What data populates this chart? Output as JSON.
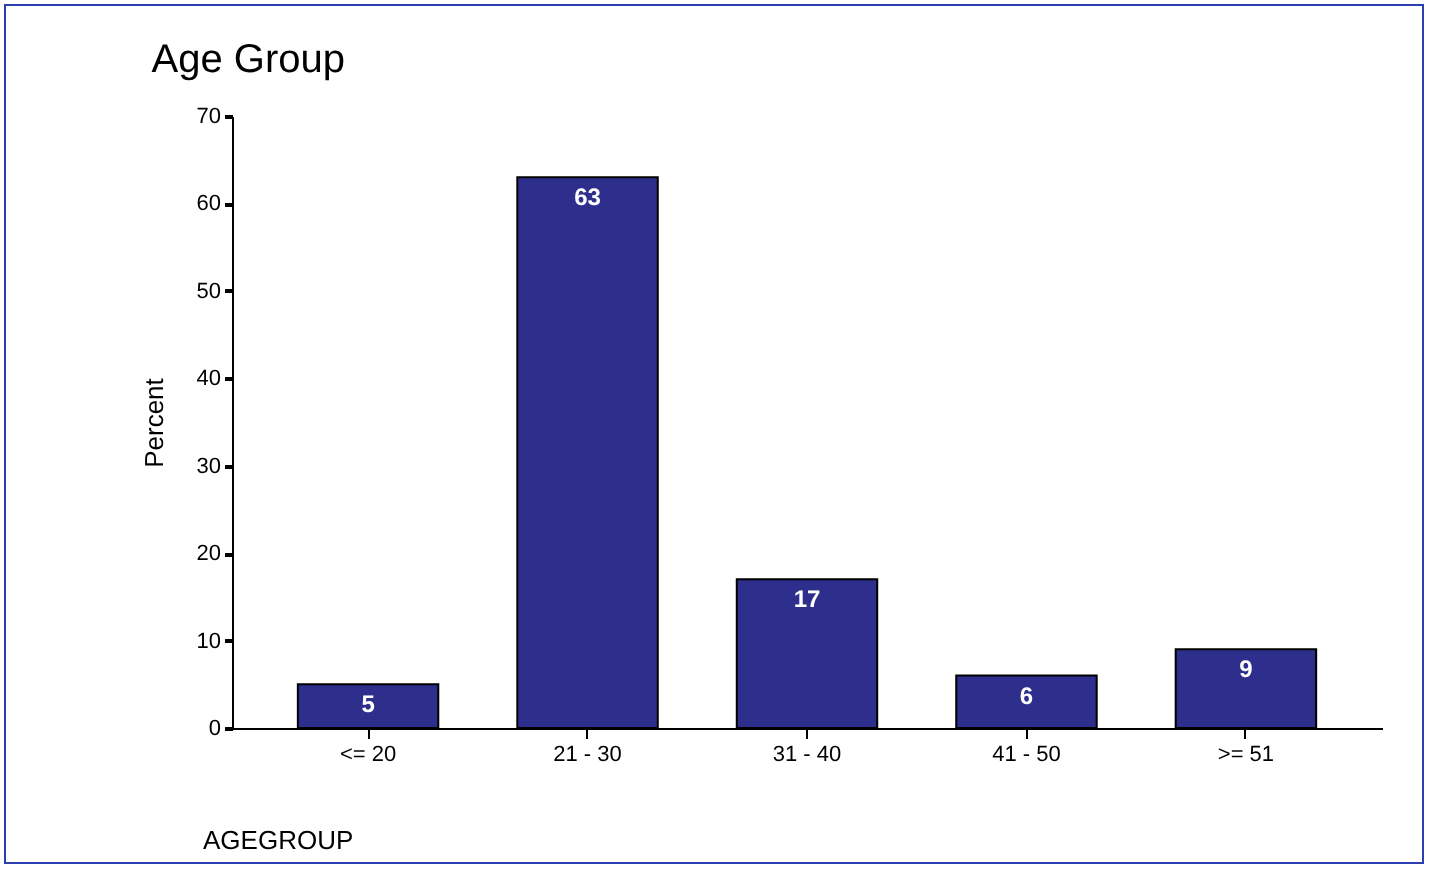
{
  "chart_data": {
    "type": "bar",
    "title": "Age Group",
    "xlabel": "AGEGROUP",
    "ylabel": "Percent",
    "categories": [
      "<= 20",
      "21 - 30",
      "31 - 40",
      "41 - 50",
      ">= 51"
    ],
    "values": [
      5,
      63,
      17,
      6,
      9
    ],
    "color": "#2e2e8c",
    "ylim": [
      0,
      70
    ],
    "yticks": [
      0,
      10,
      20,
      30,
      40,
      50,
      60,
      70
    ],
    "data_labels": true,
    "grid": false
  }
}
